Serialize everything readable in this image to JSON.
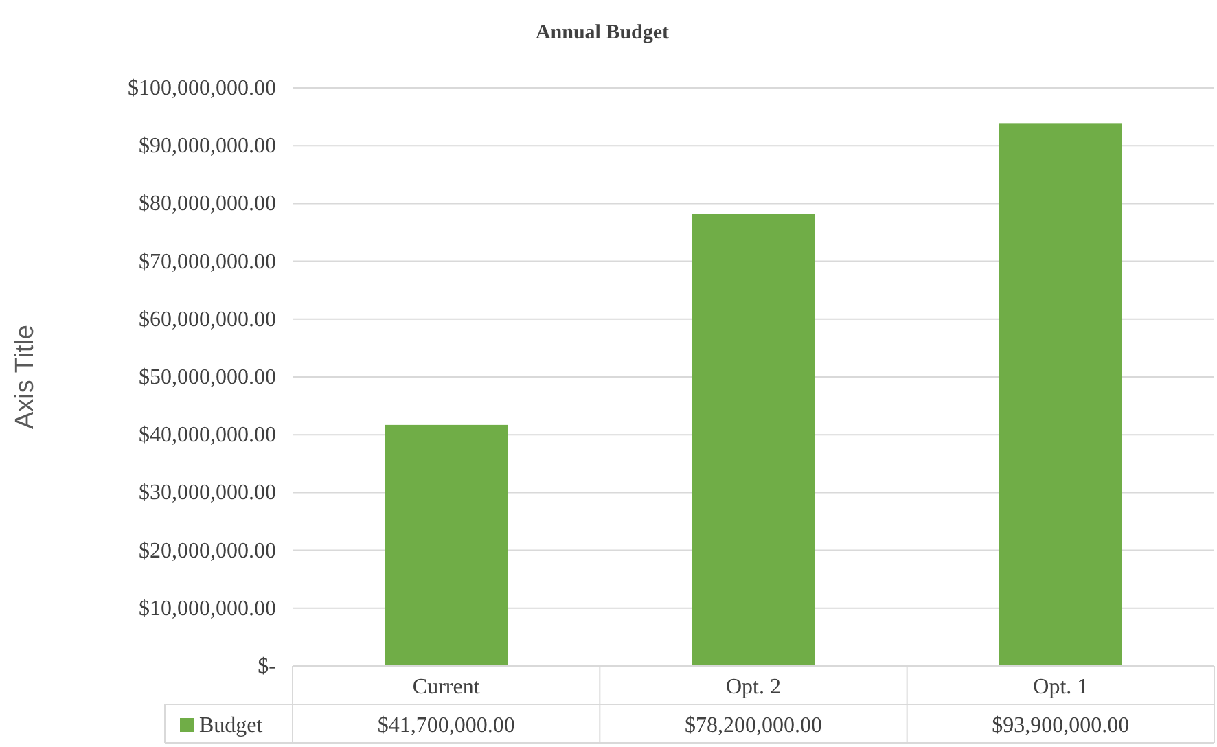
{
  "chart_data": {
    "type": "bar",
    "title": "Annual Budget",
    "ylabel": "Axis Title",
    "categories": [
      "Current",
      "Opt. 2",
      "Opt. 1"
    ],
    "series": [
      {
        "name": "Budget",
        "color": "#70ad47",
        "values": [
          41700000,
          78200000,
          93900000
        ],
        "value_labels": [
          "$41,700,000.00",
          "$78,200,000.00",
          "$93,900,000.00"
        ]
      }
    ],
    "ylim": [
      0,
      100000000
    ],
    "yticks": [
      {
        "value": 0,
        "label": "$-"
      },
      {
        "value": 10000000,
        "label": "$10,000,000.00"
      },
      {
        "value": 20000000,
        "label": "$20,000,000.00"
      },
      {
        "value": 30000000,
        "label": "$30,000,000.00"
      },
      {
        "value": 40000000,
        "label": "$40,000,000.00"
      },
      {
        "value": 50000000,
        "label": "$50,000,000.00"
      },
      {
        "value": 60000000,
        "label": "$60,000,000.00"
      },
      {
        "value": 70000000,
        "label": "$70,000,000.00"
      },
      {
        "value": 80000000,
        "label": "$80,000,000.00"
      },
      {
        "value": 90000000,
        "label": "$90,000,000.00"
      },
      {
        "value": 100000000,
        "label": "$100,000,000.00"
      }
    ],
    "grid": "y",
    "legend": "bottom"
  }
}
